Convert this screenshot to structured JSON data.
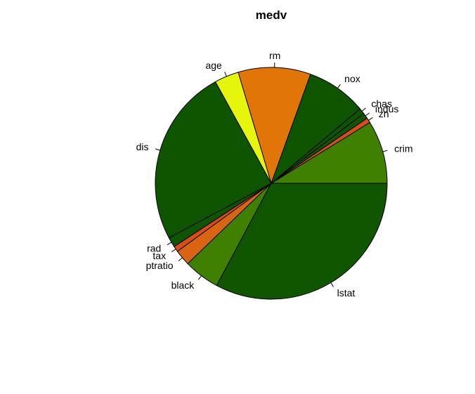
{
  "chart_data": {
    "type": "pie",
    "title": "medv",
    "legend": "none",
    "start_angle_deg": 0,
    "direction": "counterclockwise",
    "slices": [
      {
        "label": "crim",
        "value": 8.8,
        "color": "#408000"
      },
      {
        "label": "zn",
        "value": 0.7,
        "color": "#d94d12"
      },
      {
        "label": "indus",
        "value": 0.8,
        "color": "#0f5500"
      },
      {
        "label": "chas",
        "value": 0.8,
        "color": "#0f5500"
      },
      {
        "label": "nox",
        "value": 8.4,
        "color": "#0f5500"
      },
      {
        "label": "rm",
        "value": 10.1,
        "color": "#e27508"
      },
      {
        "label": "age",
        "value": 3.4,
        "color": "#e6f50c"
      },
      {
        "label": "dis",
        "value": 24.8,
        "color": "#0f5500"
      },
      {
        "label": "rad",
        "value": 1.4,
        "color": "#0f5500"
      },
      {
        "label": "tax",
        "value": 0.8,
        "color": "#d94d12"
      },
      {
        "label": "ptratio",
        "value": 2.2,
        "color": "#d96512"
      },
      {
        "label": "black",
        "value": 5.0,
        "color": "#408000"
      },
      {
        "label": "lstat",
        "value": 32.8,
        "color": "#105500"
      }
    ]
  }
}
